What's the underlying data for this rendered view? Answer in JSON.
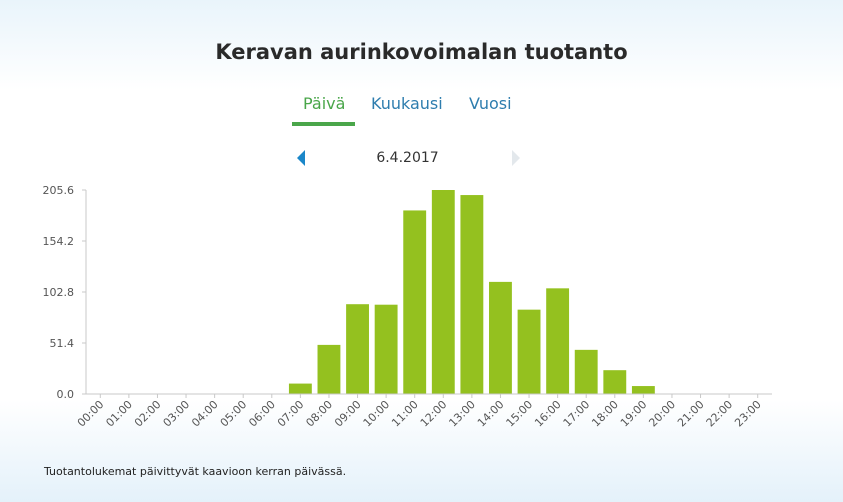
{
  "title": "Keravan aurinkovoimalan tuotanto",
  "tabs": [
    {
      "label": "Päivä",
      "active": true
    },
    {
      "label": "Kuukausi",
      "active": false
    },
    {
      "label": "Vuosi",
      "active": false
    }
  ],
  "date": "6.4.2017",
  "footnote": "Tuotantolukemat päivittyvät kaavioon kerran päivässä.",
  "colors": {
    "bar": "#94c11f",
    "accent": "#4aa64a",
    "link": "#2e7dae",
    "nav_arrow": "#1b87c9"
  },
  "chart_data": {
    "type": "bar",
    "title": "",
    "xlabel": "",
    "ylabel": "",
    "ylim": [
      0,
      205.6
    ],
    "yticks": [
      "0.0",
      "51.4",
      "102.8",
      "154.2",
      "205.6"
    ],
    "categories": [
      "00:00",
      "01:00",
      "02:00",
      "03:00",
      "04:00",
      "05:00",
      "06:00",
      "07:00",
      "08:00",
      "09:00",
      "10:00",
      "11:00",
      "12:00",
      "13:00",
      "14:00",
      "15:00",
      "16:00",
      "17:00",
      "18:00",
      "19:00",
      "20:00",
      "21:00",
      "22:00",
      "23:00"
    ],
    "values": [
      0,
      0,
      0,
      0,
      0,
      0,
      0.5,
      10.5,
      49.5,
      90.5,
      90,
      185,
      205.6,
      200.5,
      113,
      85,
      106.5,
      44.5,
      24,
      8,
      0,
      0,
      0,
      0
    ],
    "grid": false,
    "legend": "none"
  }
}
